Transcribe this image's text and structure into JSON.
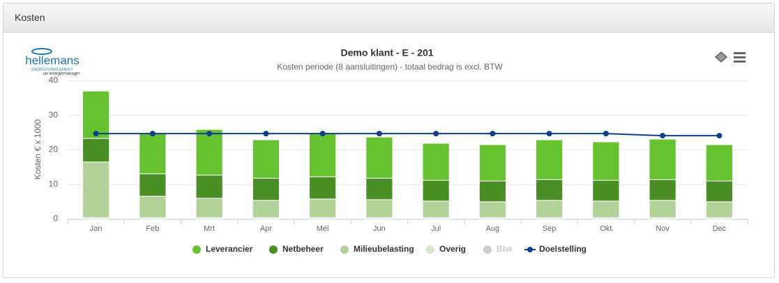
{
  "panel": {
    "title": "Kosten"
  },
  "logo": {
    "name": "hellemans",
    "tagline": "ENERGY CONSULTANCY",
    "slogan": "uw energiemanager"
  },
  "chart_data": {
    "type": "bar",
    "stacked": true,
    "title": "Demo klant - E - 201",
    "subtitle": "Kosten periode (8 aansluitingen) - totaal bedrag is excl. BTW",
    "y_label": "Kosten € x 1000",
    "categories": [
      "Jan",
      "Feb",
      "Mrt",
      "Apr",
      "Mei",
      "Jun",
      "Jul",
      "Aug",
      "Sep",
      "Okt",
      "Nov",
      "Dec"
    ],
    "ylim": [
      0,
      40
    ],
    "yticks": [
      0,
      10,
      20,
      30,
      40
    ],
    "grid": true,
    "legend": "bottom",
    "series": [
      {
        "name": "Leverancier",
        "color": "#66c22e",
        "values": [
          13.7,
          11.8,
          13.2,
          11.1,
          12.7,
          11.9,
          10.7,
          10.5,
          11.5,
          11.1,
          11.7,
          10.5
        ]
      },
      {
        "name": "Netbeheer",
        "color": "#4a8f26",
        "values": [
          6.8,
          6.5,
          6.7,
          6.4,
          6.4,
          6.2,
          6.0,
          6.0,
          6.0,
          6.0,
          6.0,
          6.0
        ]
      },
      {
        "name": "Milieubelasting",
        "color": "#b3d29a",
        "values": [
          16.1,
          6.2,
          5.6,
          5.0,
          5.4,
          5.2,
          4.8,
          4.6,
          5.0,
          4.8,
          5.0,
          4.6
        ]
      },
      {
        "name": "Overig",
        "color": "#d6e8c9",
        "values": [
          0.4,
          0.4,
          0.4,
          0.4,
          0.4,
          0.4,
          0.4,
          0.4,
          0.4,
          0.4,
          0.4,
          0.4
        ]
      },
      {
        "name": "Btw",
        "color": "#cccccc",
        "visible": false,
        "values": [
          null,
          null,
          null,
          null,
          null,
          null,
          null,
          null,
          null,
          null,
          null,
          null
        ]
      },
      {
        "name": "Doelstelling",
        "color": "#0d3f8f",
        "type": "line",
        "values": [
          24.7,
          24.7,
          24.7,
          24.7,
          24.7,
          24.7,
          24.7,
          24.7,
          24.7,
          24.7,
          24.1,
          24.1
        ]
      }
    ]
  }
}
